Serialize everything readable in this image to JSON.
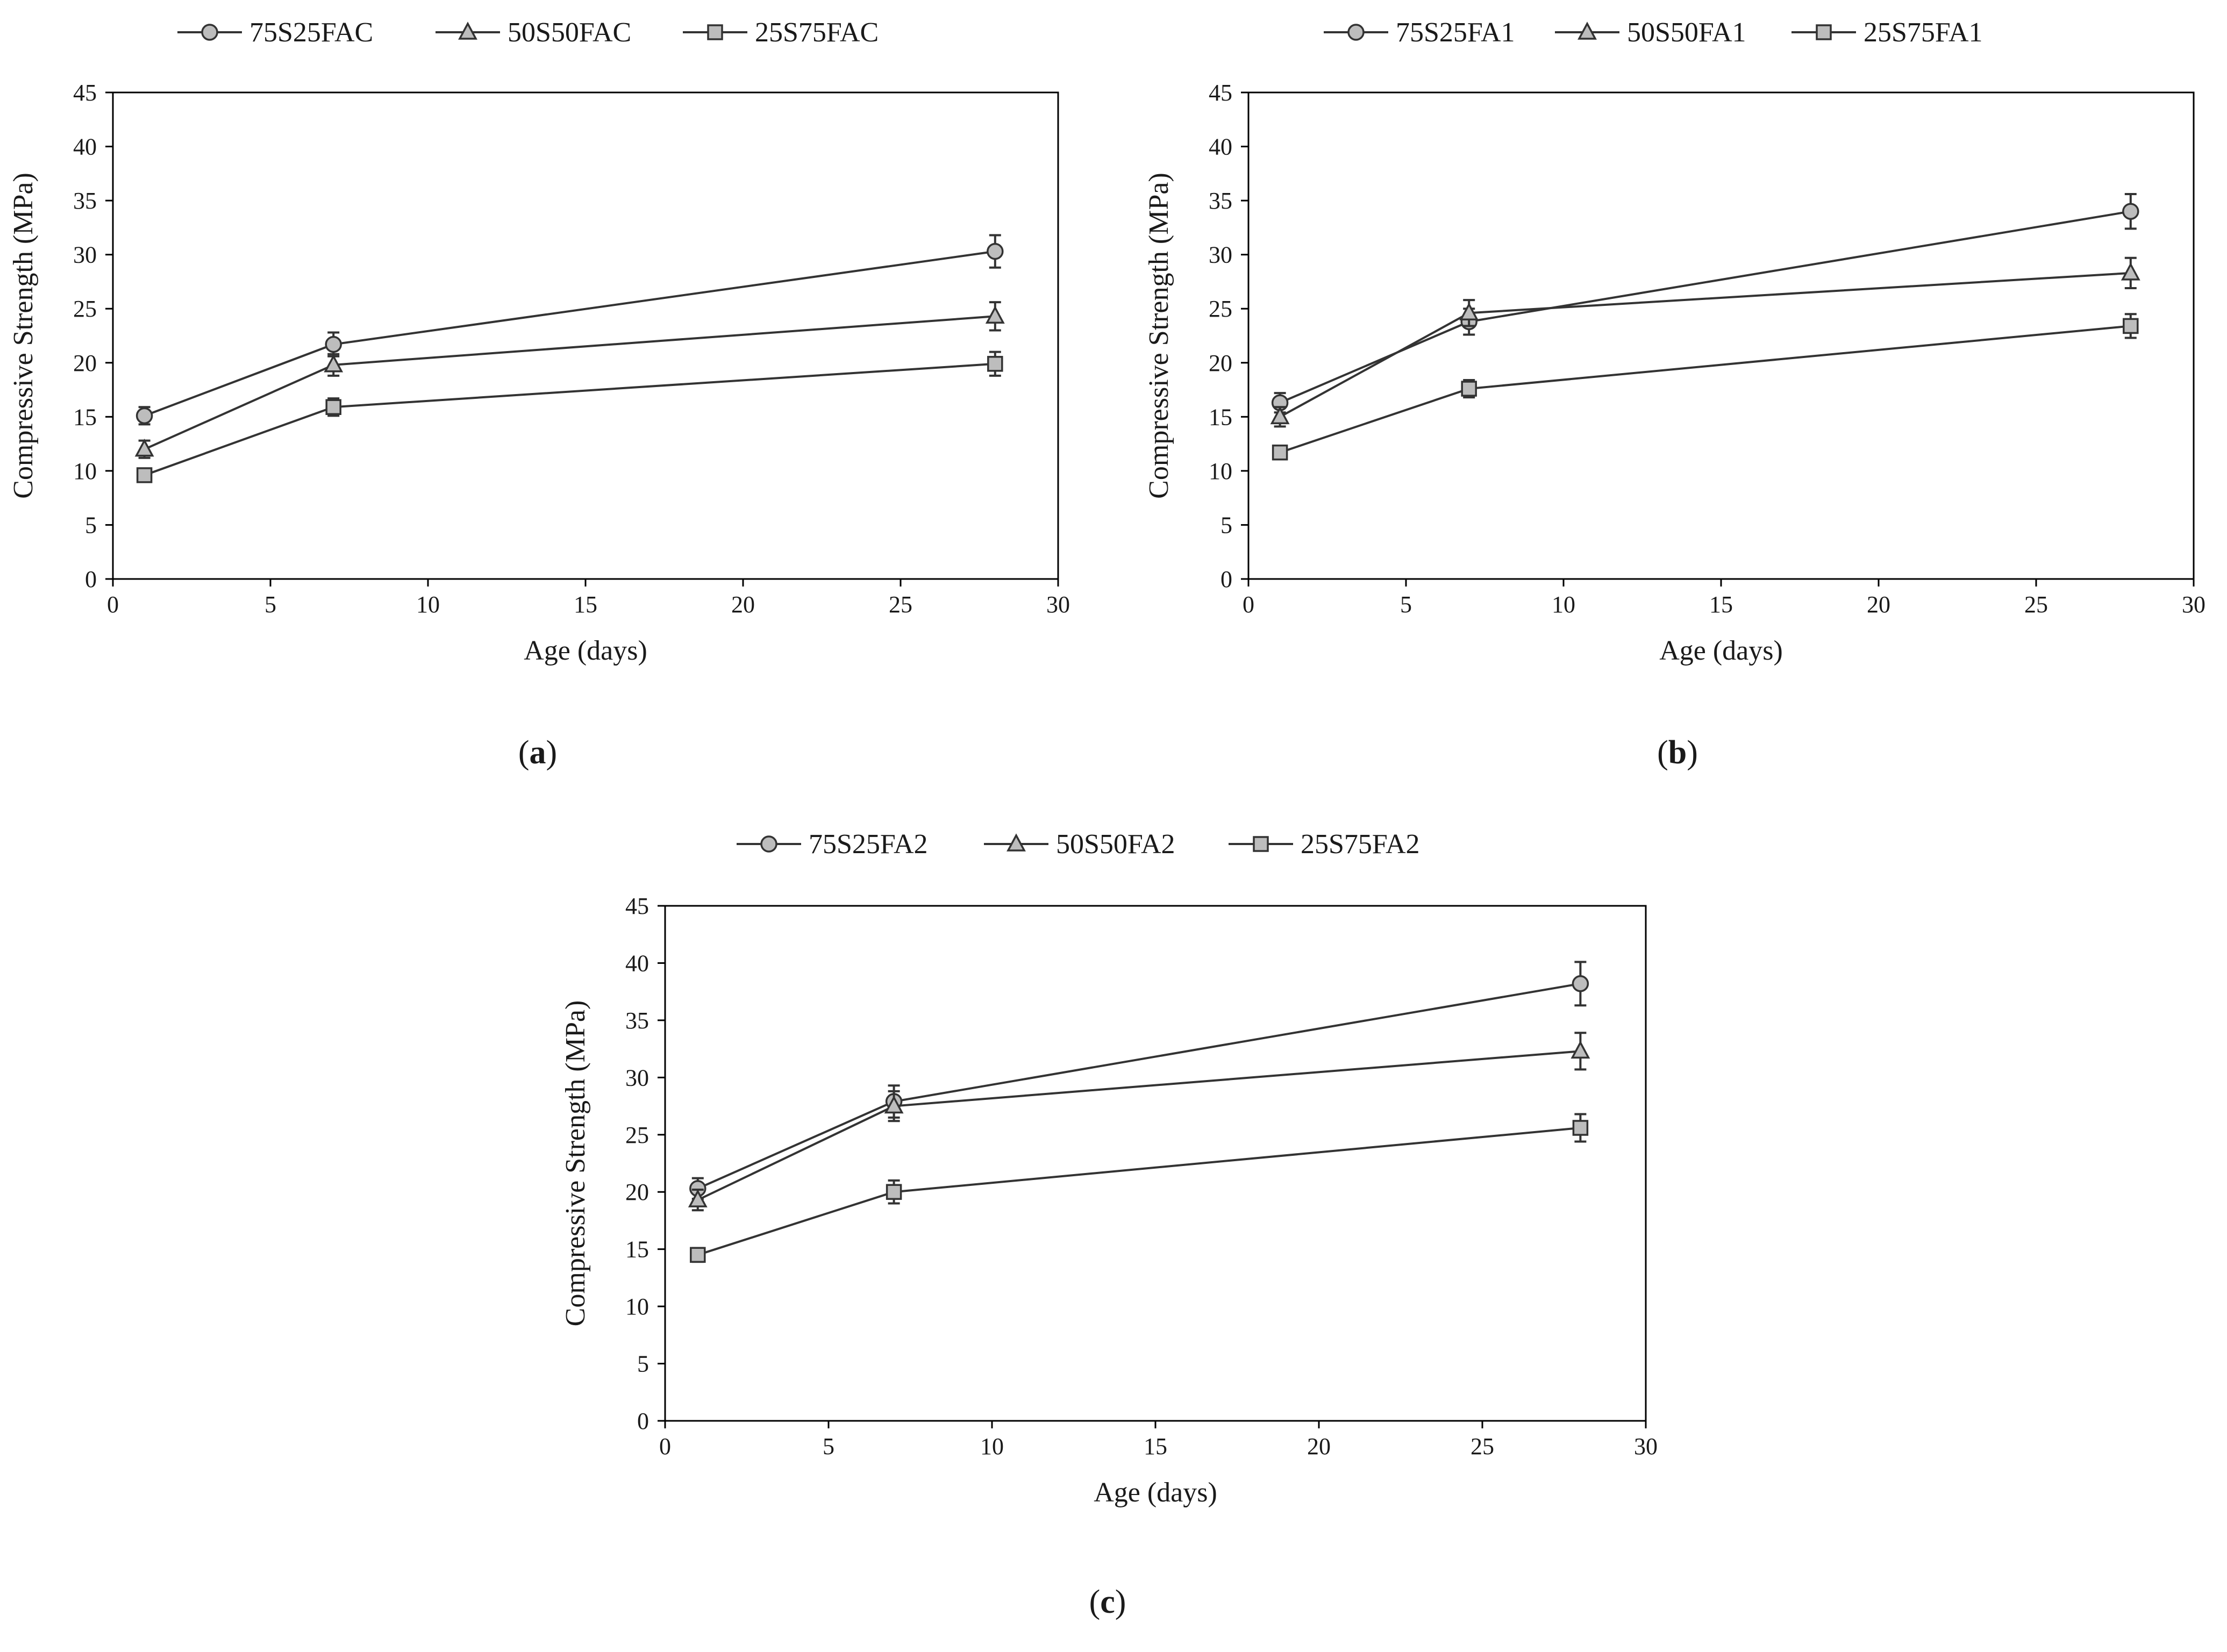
{
  "chart_data": [
    {
      "type": "line",
      "panel_label": "a",
      "xlabel": "Age (days)",
      "ylabel": "Compressive Strength (MPa)",
      "xlim": [
        0,
        30
      ],
      "ylim": [
        0,
        45
      ],
      "x_ticks": [
        0,
        5,
        10,
        15,
        20,
        25,
        30
      ],
      "y_ticks": [
        0,
        5,
        10,
        15,
        20,
        25,
        30,
        35,
        40,
        45
      ],
      "grid": false,
      "legend_position": "top",
      "x": [
        1,
        7,
        28
      ],
      "series": [
        {
          "name": "75S25FAC",
          "marker": "circle",
          "values": [
            15.1,
            21.7,
            30.3
          ],
          "errors": [
            0.8,
            1.1,
            1.5
          ]
        },
        {
          "name": "50S50FAC",
          "marker": "triangle",
          "values": [
            12.0,
            19.8,
            24.3
          ],
          "errors": [
            0.8,
            1.0,
            1.3
          ]
        },
        {
          "name": "25S75FAC",
          "marker": "square",
          "values": [
            9.6,
            15.9,
            19.9
          ],
          "errors": [
            0.5,
            0.8,
            1.1
          ]
        }
      ]
    },
    {
      "type": "line",
      "panel_label": "b",
      "xlabel": "Age (days)",
      "ylabel": "Compressive Strength (MPa)",
      "xlim": [
        0,
        30
      ],
      "ylim": [
        0,
        45
      ],
      "x_ticks": [
        0,
        5,
        10,
        15,
        20,
        25,
        30
      ],
      "y_ticks": [
        0,
        5,
        10,
        15,
        20,
        25,
        30,
        35,
        40,
        45
      ],
      "grid": false,
      "legend_position": "top",
      "x": [
        1,
        7,
        28
      ],
      "series": [
        {
          "name": "75S25FA1",
          "marker": "circle",
          "values": [
            16.3,
            23.8,
            34.0
          ],
          "errors": [
            0.9,
            1.2,
            1.6
          ]
        },
        {
          "name": "50S50FA1",
          "marker": "triangle",
          "values": [
            15.0,
            24.6,
            28.3
          ],
          "errors": [
            0.9,
            1.2,
            1.4
          ]
        },
        {
          "name": "25S75FA1",
          "marker": "square",
          "values": [
            11.7,
            17.6,
            23.4
          ],
          "errors": [
            0.4,
            0.8,
            1.1
          ]
        }
      ]
    },
    {
      "type": "line",
      "panel_label": "c",
      "xlabel": "Age (days)",
      "ylabel": "Compressive Strength (MPa)",
      "xlim": [
        0,
        30
      ],
      "ylim": [
        0,
        45
      ],
      "x_ticks": [
        0,
        5,
        10,
        15,
        20,
        25,
        30
      ],
      "y_ticks": [
        0,
        5,
        10,
        15,
        20,
        25,
        30,
        35,
        40,
        45
      ],
      "grid": false,
      "legend_position": "top",
      "x": [
        1,
        7,
        28
      ],
      "series": [
        {
          "name": "75S25FA2",
          "marker": "circle",
          "values": [
            20.3,
            27.9,
            38.2
          ],
          "errors": [
            0.9,
            1.4,
            1.9
          ]
        },
        {
          "name": "50S50FA2",
          "marker": "triangle",
          "values": [
            19.3,
            27.5,
            32.3
          ],
          "errors": [
            0.9,
            1.3,
            1.6
          ]
        },
        {
          "name": "25S75FA2",
          "marker": "square",
          "values": [
            14.5,
            20.0,
            25.6
          ],
          "errors": [
            0.6,
            1.0,
            1.2
          ]
        }
      ]
    }
  ]
}
